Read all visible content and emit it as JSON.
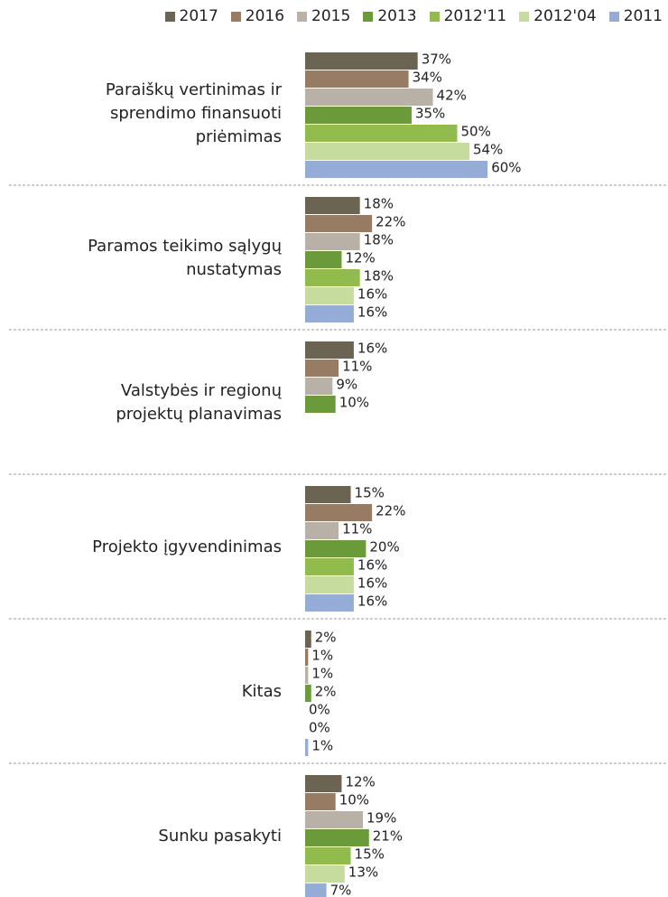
{
  "chart_data": {
    "type": "hbar",
    "categories": [
      "Paraiškų vertinimas ir\nsprendimo finansuoti\npriėmimas",
      "Paramos teikimo sąlygų\nnustatymas",
      "Valstybės ir regionų\nprojektų planavimas",
      "Projekto įgyvendinimas",
      "Kitas",
      "Sunku pasakyti"
    ],
    "series": [
      {
        "name": "2017",
        "color": "#6b6452",
        "values": [
          37,
          18,
          16,
          15,
          2,
          12
        ],
        "value_labels": [
          "37%",
          "18%",
          "16%",
          "15%",
          "2%",
          "12%"
        ]
      },
      {
        "name": "2016",
        "color": "#977b63",
        "values": [
          34,
          22,
          11,
          22,
          1,
          10
        ],
        "value_labels": [
          "34%",
          "22%",
          "11%",
          "22%",
          "1%",
          "10%"
        ]
      },
      {
        "name": "2015",
        "color": "#b7b1a6",
        "values": [
          42,
          18,
          9,
          11,
          1,
          19
        ],
        "value_labels": [
          "42%",
          "18%",
          "9%",
          "11%",
          "1%",
          "19%"
        ]
      },
      {
        "name": "2013",
        "color": "#6a9a3a",
        "values": [
          35,
          12,
          10,
          20,
          2,
          21
        ],
        "value_labels": [
          "35%",
          "12%",
          "10%",
          "20%",
          "2%",
          "21%"
        ]
      },
      {
        "name": "2012'11",
        "color": "#92bb4d",
        "values": [
          50,
          18,
          null,
          16,
          0,
          15
        ],
        "value_labels": [
          "50%",
          "18%",
          null,
          "16%",
          "0%",
          "15%"
        ]
      },
      {
        "name": "2012'04",
        "color": "#c5dc9e",
        "values": [
          54,
          16,
          null,
          16,
          0,
          13
        ],
        "value_labels": [
          "54%",
          "16%",
          null,
          "16%",
          "0%",
          "13%"
        ]
      },
      {
        "name": "2011",
        "color": "#94acd6",
        "values": [
          60,
          16,
          null,
          16,
          1,
          7
        ],
        "value_labels": [
          "60%",
          "16%",
          null,
          "16%",
          "1%",
          "7%"
        ]
      }
    ]
  }
}
